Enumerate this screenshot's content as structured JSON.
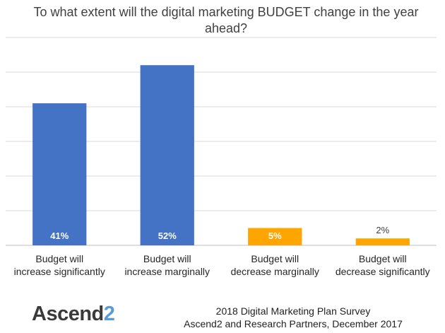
{
  "chart_data": {
    "type": "bar",
    "title": "To what extent will the digital marketing BUDGET change in the year ahead?",
    "categories": [
      [
        "Budget will",
        "increase significantly"
      ],
      [
        "Budget will",
        "increase marginally"
      ],
      [
        "Budget will",
        "decrease marginally"
      ],
      [
        "Budget will",
        "decrease significantly"
      ]
    ],
    "values": [
      41,
      52,
      5,
      2
    ],
    "data_labels": [
      "41%",
      "52%",
      "5%",
      "2%"
    ],
    "bar_colors": [
      "#4472c4",
      "#4472c4",
      "#ffa500",
      "#ffa500"
    ],
    "ylim": [
      0,
      60
    ],
    "grid": true,
    "gridline_step": 10,
    "xlabel": "",
    "ylabel": ""
  },
  "footer": {
    "logo_text": "Ascend",
    "logo_two": "2",
    "credit_line1": "2018 Digital Marketing Plan Survey",
    "credit_line2": "Ascend2 and Research Partners, December 2017"
  }
}
